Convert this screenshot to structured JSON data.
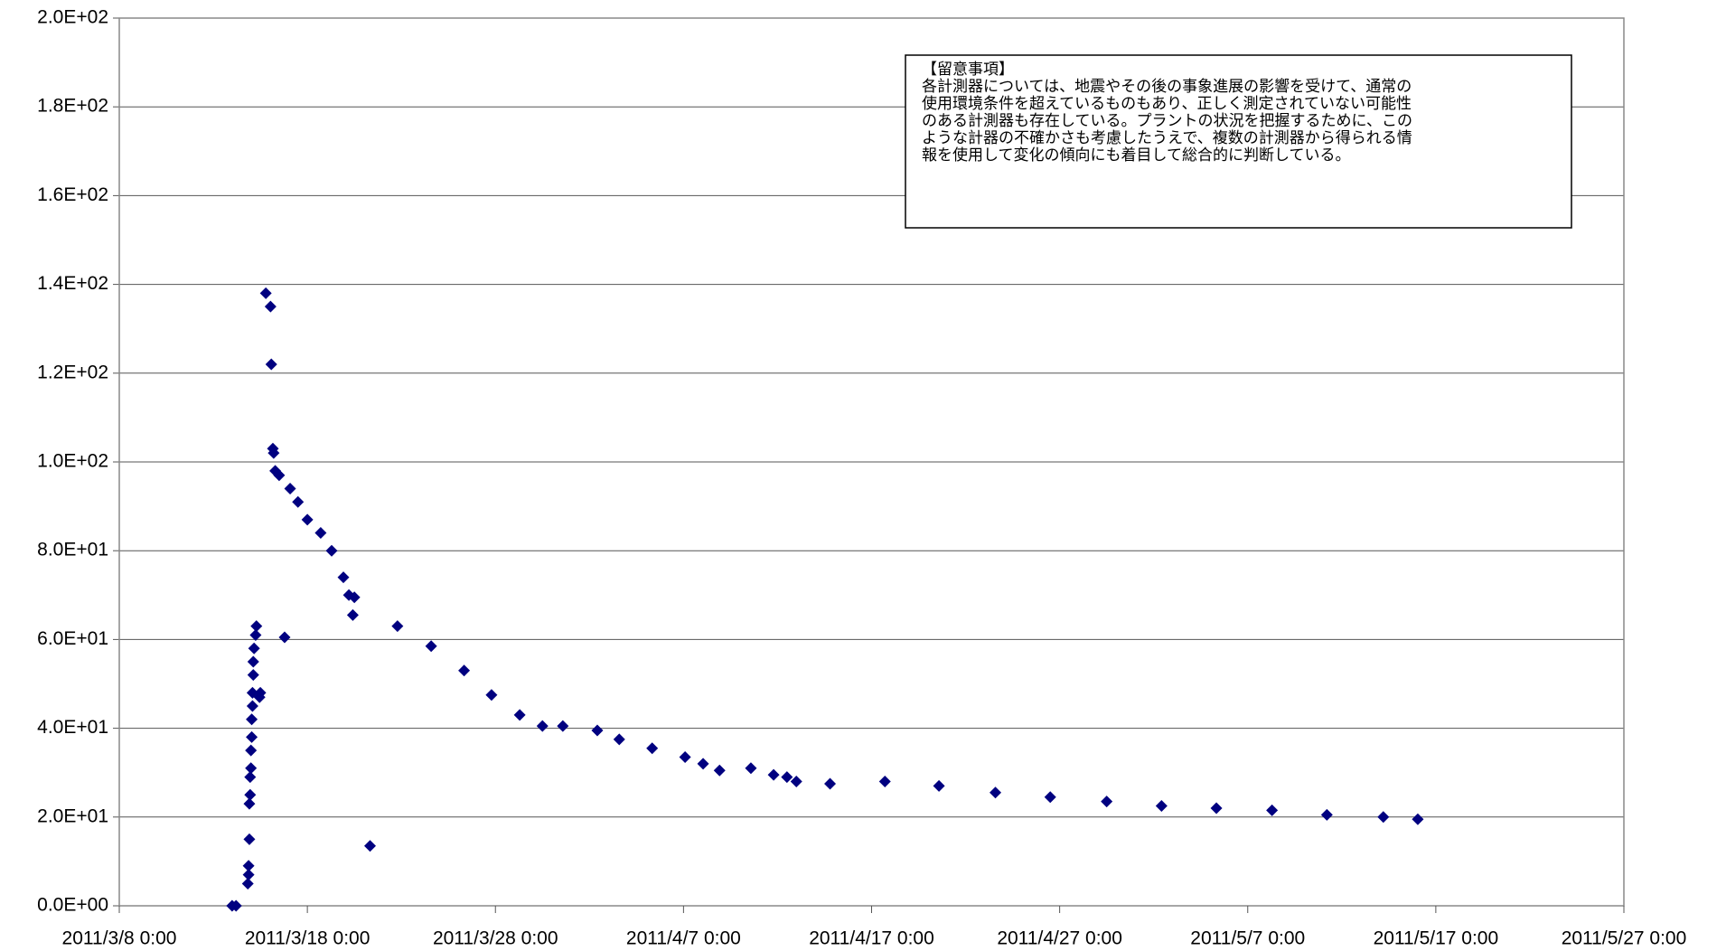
{
  "chart_data": {
    "type": "scatter",
    "annotation": [
      "【留意事項】",
      "各計測器については、地震やその後の事象進展の影響を受けて、通常の",
      "使用環境条件を超えているものもあり、正しく測定されていない可能性",
      "のある計測器も存在している。プラントの状況を把握するために、この",
      "ような計器の不確かさも考慮したうえで、複数の計測器から得られる情",
      "報を使用して変化の傾向にも着目して総合的に判断している。"
    ],
    "series": [
      {
        "color": "#000080",
        "x": [
          "2011/3/14 0:00",
          "2011/3/14 5:00",
          "2011/3/14 20:00",
          "2011/3/14 21:00",
          "2011/3/14 21:00",
          "2011/3/14 22:00",
          "2011/3/14 22:00",
          "2011/3/14 23:00",
          "2011/3/14 23:00",
          "2011/3/15 0:00",
          "2011/3/15 0:00",
          "2011/3/15 1:00",
          "2011/3/15 1:00",
          "2011/3/15 2:00",
          "2011/3/15 2:00",
          "2011/3/15 3:00",
          "2011/3/15 3:00",
          "2011/3/15 4:00",
          "2011/3/15 6:00",
          "2011/3/15 7:00",
          "2011/3/15 11:00",
          "2011/3/15 12:00",
          "2011/3/15 19:00",
          "2011/3/16 1:00",
          "2011/3/16 2:00",
          "2011/3/16 4:00",
          "2011/3/16 5:00",
          "2011/3/16 7:00",
          "2011/3/16 12:00",
          "2011/3/16 19:00",
          "2011/3/17 2:00",
          "2011/3/17 12:00",
          "2011/3/18 0:00",
          "2011/3/18 17:00",
          "2011/3/19 7:00",
          "2011/3/19 22:00",
          "2011/3/20 5:00",
          "2011/3/20 10:00",
          "2011/3/20 12:00",
          "2011/3/21 8:00",
          "2011/3/22 19:00",
          "2011/3/24 14:00",
          "2011/3/26 8:00",
          "2011/3/27 19:00",
          "2011/3/29 7:00",
          "2011/3/30 12:00",
          "2011/3/31 14:00",
          "2011/4/2 10:00",
          "2011/4/3 14:00",
          "2011/4/5 8:00",
          "2011/4/7 2:00",
          "2011/4/8 1:00",
          "2011/4/8 22:00",
          "2011/4/10 14:00",
          "2011/4/11 19:00",
          "2011/4/12 12:00",
          "2011/4/13 0:00",
          "2011/4/14 19:00",
          "2011/4/17 17:00",
          "2011/4/20 14:00",
          "2011/4/23 14:00",
          "2011/4/26 12:00",
          "2011/4/29 12:00",
          "2011/5/2 10:00",
          "2011/5/5 8:00",
          "2011/5/8 7:00",
          "2011/5/11 5:00",
          "2011/5/14 5:00",
          "2011/5/16 1:00"
        ],
        "values": [
          0,
          0,
          5,
          7,
          9,
          15,
          23,
          25,
          29,
          31,
          35,
          38,
          42,
          45,
          48,
          52,
          55,
          58,
          61,
          63,
          47,
          48,
          138,
          135,
          122,
          103,
          102,
          98,
          97,
          60.5,
          94,
          91,
          87,
          84,
          80,
          74,
          70,
          65.5,
          69.5,
          13.5,
          63,
          58.5,
          53,
          47.5,
          43,
          40.5,
          40.5,
          39.5,
          37.5,
          35.5,
          33.5,
          32,
          30.5,
          31,
          29.5,
          29,
          28,
          27.5,
          28,
          27,
          25.5,
          24.5,
          23.5,
          22.5,
          22,
          21.5,
          20.5,
          20,
          19.5
        ]
      }
    ],
    "xlim": [
      "2011/3/8 0:00",
      "2011/5/27 0:00"
    ],
    "xticks": [
      "2011/3/8 0:00",
      "2011/3/18 0:00",
      "2011/3/28 0:00",
      "2011/4/7 0:00",
      "2011/4/17 0:00",
      "2011/4/27 0:00",
      "2011/5/7 0:00",
      "2011/5/17 0:00",
      "2011/5/27 0:00"
    ],
    "ylim": [
      0,
      200
    ],
    "yticks": [
      {
        "value": 0,
        "label": "0.0E+00"
      },
      {
        "value": 20,
        "label": "2.0E+01"
      },
      {
        "value": 40,
        "label": "4.0E+01"
      },
      {
        "value": 60,
        "label": "6.0E+01"
      },
      {
        "value": 80,
        "label": "8.0E+01"
      },
      {
        "value": 100,
        "label": "1.0E+02"
      },
      {
        "value": 120,
        "label": "1.2E+02"
      },
      {
        "value": 140,
        "label": "1.4E+02"
      },
      {
        "value": 160,
        "label": "1.6E+02"
      },
      {
        "value": 180,
        "label": "1.8E+02"
      },
      {
        "value": 200,
        "label": "2.0E+02"
      }
    ],
    "grid": true
  }
}
